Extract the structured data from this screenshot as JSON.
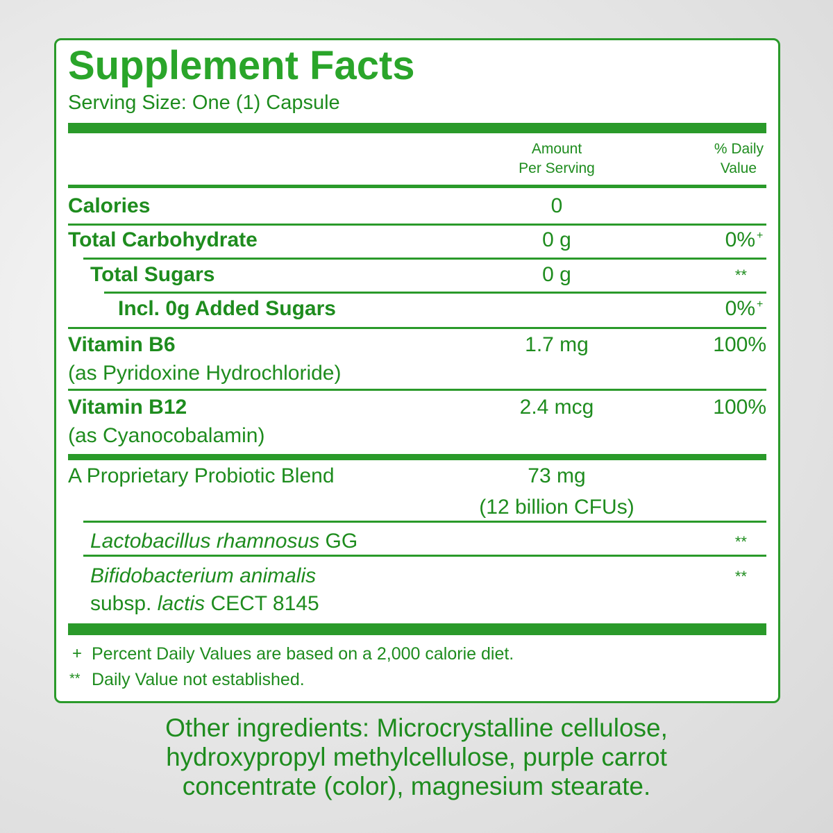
{
  "title": "Supplement Facts",
  "serving_size": "Serving Size: One (1) Capsule",
  "columns": {
    "amount": [
      "Amount",
      "Per Serving"
    ],
    "daily_value": [
      "% Daily",
      "Value"
    ]
  },
  "rows": [
    {
      "name": "Calories",
      "amount": "0"
    },
    {
      "name": "Total Carbohydrate",
      "amount": "0 g",
      "dv": "0%",
      "dv_mark": "+"
    },
    {
      "name": "Total Sugars",
      "amount": "0 g",
      "dv": "**"
    },
    {
      "name": "Incl. 0g Added Sugars",
      "dv": "0%",
      "dv_mark": "+"
    },
    {
      "name": "Vitamin B6",
      "source": "(as Pyridoxine Hydrochloride)",
      "amount": "1.7 mg",
      "dv": "100%"
    },
    {
      "name": "Vitamin B12",
      "source": "(as Cyanocobalamin)",
      "amount": "2.4 mcg",
      "dv": "100%"
    }
  ],
  "blend": {
    "name": "A Proprietary Probiotic Blend",
    "amount": [
      "73 mg",
      "(12 billion CFUs)"
    ],
    "strains": [
      {
        "genus": "Lactobacillus rhamnosus",
        "strain": "GG",
        "dv": "**"
      },
      {
        "genus": "Bifidobacterium animalis",
        "subsp": "subsp.",
        "subsp_name": "lactis",
        "strain": "CECT 8145",
        "dv": "**"
      }
    ]
  },
  "footnotes": [
    {
      "symbol": "+",
      "text": "Percent Daily Values are based on a 2,000 calorie diet."
    },
    {
      "symbol": "**",
      "text": "Daily Value not established."
    }
  ],
  "other_ingredients": [
    "Other ingredients: Microcrystalline cellulose,",
    "hydroxypropyl methylcellulose, purple carrot",
    "concentrate (color), magnesium stearate."
  ]
}
